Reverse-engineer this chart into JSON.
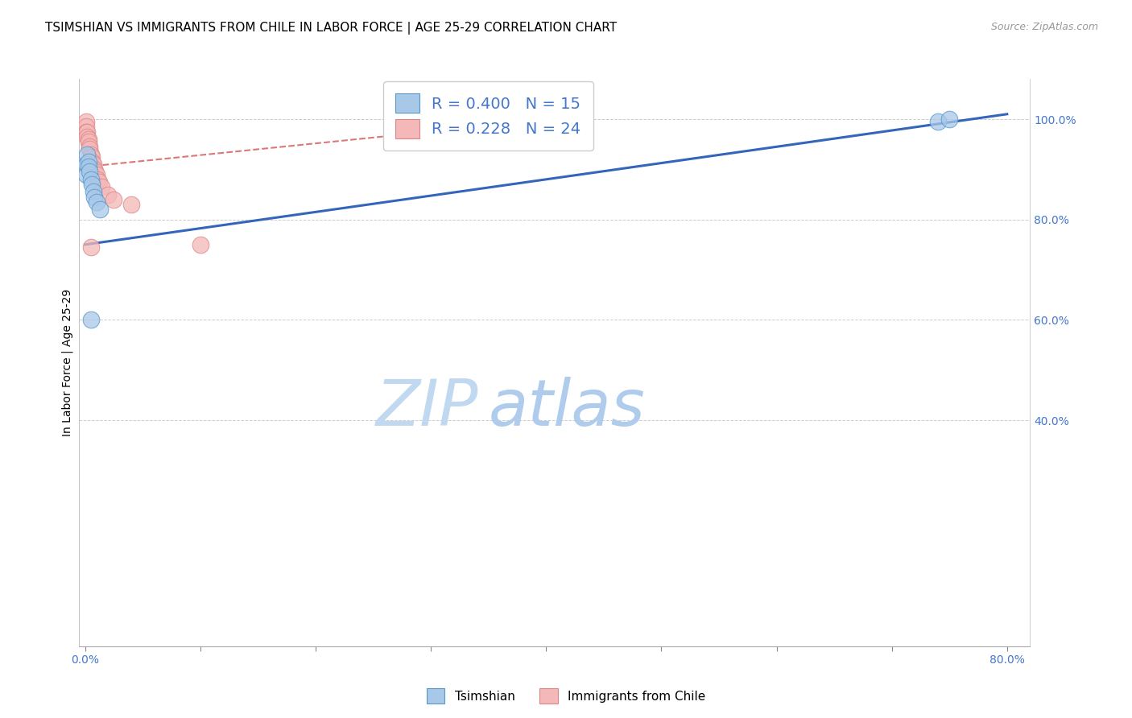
{
  "title": "TSIMSHIAN VS IMMIGRANTS FROM CHILE IN LABOR FORCE | AGE 25-29 CORRELATION CHART",
  "source": "Source: ZipAtlas.com",
  "ylabel": "In Labor Force | Age 25-29",
  "xlim": [
    -0.005,
    0.82
  ],
  "ylim": [
    -0.05,
    1.08
  ],
  "xticks": [
    0.0,
    0.1,
    0.2,
    0.3,
    0.4,
    0.5,
    0.6,
    0.7,
    0.8
  ],
  "yticks": [
    0.4,
    0.6,
    0.8,
    1.0
  ],
  "ytick_labels": [
    "40.0%",
    "60.0%",
    "80.0%",
    "100.0%"
  ],
  "xtick_labels": [
    "0.0%",
    "",
    "",
    "",
    "",
    "",
    "",
    "",
    "80.0%"
  ],
  "blue_R": 0.4,
  "blue_N": 15,
  "pink_R": 0.228,
  "pink_N": 24,
  "blue_color": "#a8c8e8",
  "pink_color": "#f4b8b8",
  "blue_edge_color": "#5599cc",
  "pink_edge_color": "#dd8888",
  "blue_line_color": "#3366bb",
  "pink_line_color": "#dd7777",
  "watermark_zip": "ZIP",
  "watermark_atlas": "atlas",
  "watermark_color": "#d0e8f8",
  "legend_blue_label": "Tsimshian",
  "legend_pink_label": "Immigrants from Chile",
  "tsimshian_x": [
    0.001,
    0.001,
    0.002,
    0.003,
    0.003,
    0.004,
    0.005,
    0.006,
    0.007,
    0.008,
    0.01,
    0.013,
    0.74,
    0.75,
    0.005
  ],
  "tsimshian_y": [
    0.91,
    0.89,
    0.93,
    0.915,
    0.905,
    0.895,
    0.88,
    0.87,
    0.855,
    0.845,
    0.835,
    0.82,
    0.995,
    1.0,
    0.6
  ],
  "chile_x": [
    0.001,
    0.001,
    0.001,
    0.002,
    0.002,
    0.003,
    0.003,
    0.004,
    0.004,
    0.005,
    0.006,
    0.006,
    0.007,
    0.008,
    0.009,
    0.01,
    0.011,
    0.012,
    0.014,
    0.02,
    0.025,
    0.04,
    0.1,
    0.005
  ],
  "chile_y": [
    0.995,
    0.985,
    0.975,
    0.975,
    0.965,
    0.96,
    0.955,
    0.945,
    0.94,
    0.93,
    0.925,
    0.915,
    0.91,
    0.9,
    0.895,
    0.89,
    0.88,
    0.875,
    0.865,
    0.85,
    0.84,
    0.83,
    0.75,
    0.745
  ],
  "blue_line_x0": 0.0,
  "blue_line_x1": 0.8,
  "blue_line_y0": 0.75,
  "blue_line_y1": 1.01,
  "pink_line_x0": 0.0,
  "pink_line_x1": 0.3,
  "pink_line_y0": 0.905,
  "pink_line_y1": 0.975,
  "title_fontsize": 11,
  "axis_color": "#4477cc",
  "tick_label_color": "#4477cc",
  "figsize": [
    14.06,
    8.92
  ],
  "dpi": 100
}
